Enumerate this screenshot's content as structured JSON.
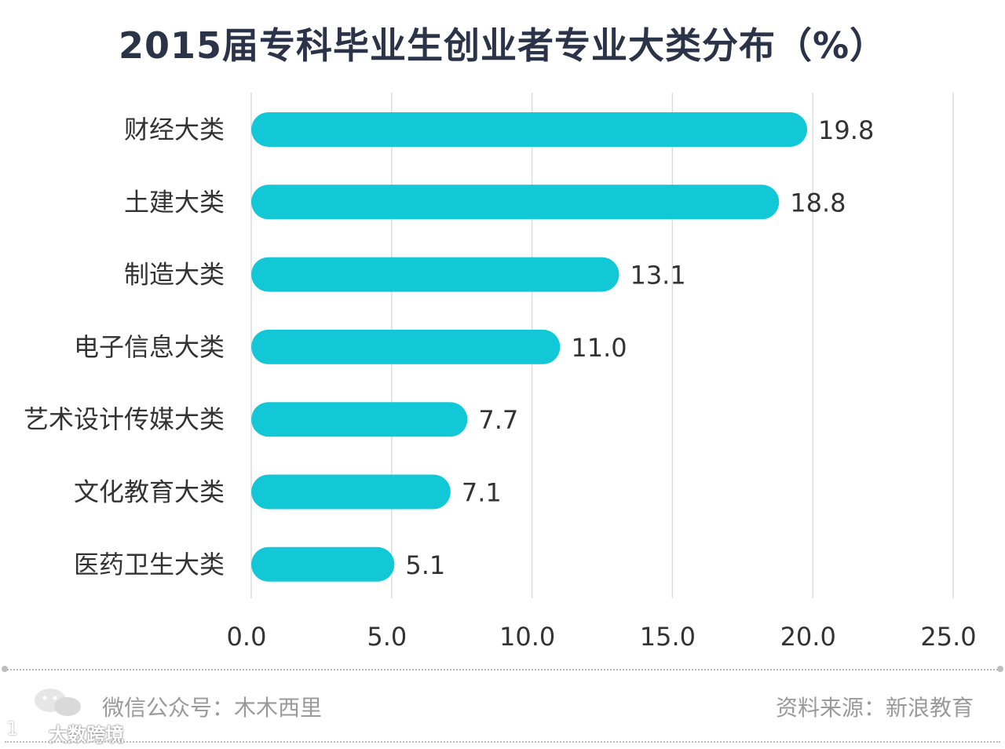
{
  "chart_data": {
    "type": "bar",
    "orientation": "horizontal",
    "title": "2015届专科毕业生创业者专业大类分布（%）",
    "categories": [
      "财经大类",
      "土建大类",
      "制造大类",
      "电子信息大类",
      "艺术设计传媒大类",
      "文化教育大类",
      "医药卫生大类"
    ],
    "values": [
      19.8,
      18.8,
      13.1,
      11.0,
      7.7,
      7.1,
      5.1
    ],
    "value_labels": [
      "19.8",
      "18.8",
      "13.1",
      "11.0",
      "7.7",
      "7.1",
      "5.1"
    ],
    "xticks": [
      "0.0",
      "5.0",
      "10.0",
      "15.0",
      "20.0",
      "25.0"
    ],
    "xlim": [
      0,
      25
    ],
    "grid": true,
    "xlabel": "",
    "ylabel": ""
  },
  "footer": {
    "left_text": "微信公众号：木木西里",
    "right_text": "资料来源：新浪教育"
  },
  "watermark": {
    "text": "大数跨境",
    "prefix": "1"
  },
  "colors": {
    "bar": "#12c8d6",
    "title": "#2a3347",
    "label": "#333333",
    "grid": "#dcdcdc"
  }
}
